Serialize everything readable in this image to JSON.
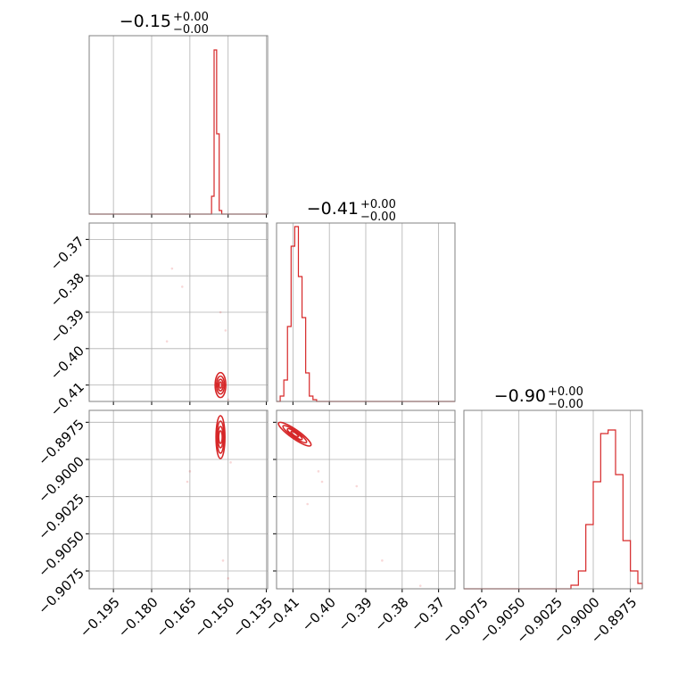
{
  "chart_data": {
    "type": "corner",
    "color": "#d62728",
    "parameters": [
      {
        "title": "−0.15",
        "upper": "+0.00",
        "lower": "−0.00",
        "range": [
          -0.2045,
          -0.1345
        ],
        "ticks": [
          -0.195,
          -0.18,
          -0.165,
          -0.15,
          -0.135
        ],
        "tick_labels": [
          "−0.195",
          "−0.180",
          "−0.165",
          "−0.150",
          "−0.135"
        ],
        "hist": {
          "edges": [
            -0.1565,
            -0.1555,
            -0.1545,
            -0.1535,
            -0.1525,
            -0.1515,
            -0.1505
          ],
          "counts": [
            0.1,
            0.92,
            0.45,
            0.02,
            0.0,
            0.0
          ]
        }
      },
      {
        "title": "−0.41",
        "upper": "+0.00",
        "lower": "−0.00",
        "range": [
          -0.4145,
          -0.3655
        ],
        "ticks": [
          -0.41,
          -0.4,
          -0.39,
          -0.38,
          -0.37
        ],
        "tick_labels": [
          "−0.41",
          "−0.40",
          "−0.39",
          "−0.38",
          "−0.37"
        ],
        "hist": {
          "edges": [
            -0.4135,
            -0.4125,
            -0.4115,
            -0.4105,
            -0.4095,
            -0.4085,
            -0.4075,
            -0.4065,
            -0.4055,
            -0.4045,
            -0.4035,
            -0.3655
          ],
          "counts": [
            0.03,
            0.12,
            0.42,
            0.87,
            0.98,
            0.7,
            0.47,
            0.16,
            0.03,
            0.01,
            0.0
          ]
        }
      },
      {
        "title": "−0.90",
        "upper": "+0.00",
        "lower": "−0.00",
        "range": [
          -0.9087,
          -0.8967
        ],
        "ticks": [
          -0.9075,
          -0.905,
          -0.9025,
          -0.9,
          -0.8975
        ],
        "tick_labels": [
          "−0.9075",
          "−0.9050",
          "−0.9025",
          "−0.9000",
          "−0.8975"
        ],
        "hist": {
          "edges": [
            -0.9015,
            -0.901,
            -0.9005,
            -0.9,
            -0.8995,
            -0.899,
            -0.8985,
            -0.898,
            -0.8975,
            -0.897,
            -0.8967
          ],
          "counts": [
            0.02,
            0.1,
            0.36,
            0.6,
            0.87,
            0.89,
            0.64,
            0.27,
            0.1,
            0.03
          ]
        }
      }
    ],
    "pairs": [
      {
        "row": 1,
        "col": 0,
        "center": [
          -0.153,
          -0.41
        ],
        "scatter": [
          [
            -0.168,
            -0.383
          ],
          [
            -0.172,
            -0.378
          ],
          [
            -0.174,
            -0.398
          ],
          [
            -0.151,
            -0.395
          ],
          [
            -0.153,
            -0.39
          ],
          [
            -0.15,
            -0.414
          ]
        ]
      },
      {
        "row": 2,
        "col": 0,
        "center": [
          -0.153,
          -0.8985
        ],
        "scatter": [
          [
            -0.165,
            -0.9008
          ],
          [
            -0.166,
            -0.9015
          ],
          [
            -0.15,
            -0.908
          ],
          [
            -0.152,
            -0.9068
          ],
          [
            -0.149,
            -0.9002
          ]
        ]
      },
      {
        "row": 2,
        "col": 1,
        "center": [
          -0.4095,
          -0.8983
        ],
        "scatter": [
          [
            -0.402,
            -0.9015
          ],
          [
            -0.3925,
            -0.9018
          ],
          [
            -0.406,
            -0.903
          ],
          [
            -0.3855,
            -0.9068
          ],
          [
            -0.375,
            -0.9085
          ],
          [
            -0.403,
            -0.9008
          ]
        ]
      }
    ]
  }
}
